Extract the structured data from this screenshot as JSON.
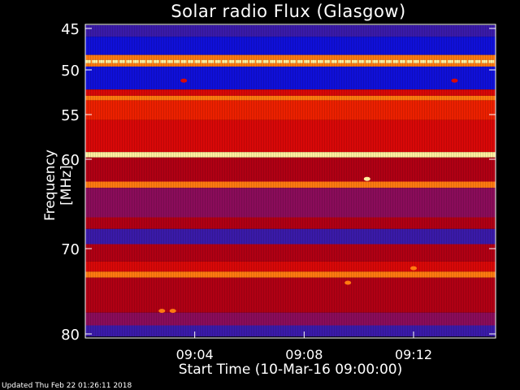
{
  "chart_data": {
    "type": "heatmap",
    "title": "Solar radio Flux (Glasgow)",
    "ylabel": "Frequency [MHz]",
    "xlabel": "Start Time (10-Mar-16 09:00:00)",
    "x_ticks": [
      "09:04",
      "09:08",
      "09:12"
    ],
    "x_tick_minutes": [
      4,
      8,
      12
    ],
    "xlim_minutes": [
      0,
      15
    ],
    "y_ticks": [
      45,
      50,
      55,
      60,
      70,
      80
    ],
    "ylim": [
      45,
      80
    ],
    "bands": [
      {
        "from": 44.6,
        "to": 46.0,
        "level": "low"
      },
      {
        "from": 46.0,
        "to": 48.2,
        "level": "very_low"
      },
      {
        "from": 48.2,
        "to": 48.8,
        "level": "high"
      },
      {
        "from": 48.8,
        "to": 49.2,
        "level": "max"
      },
      {
        "from": 49.2,
        "to": 49.6,
        "level": "high"
      },
      {
        "from": 49.6,
        "to": 52.2,
        "level": "very_low"
      },
      {
        "from": 52.2,
        "to": 52.9,
        "level": "mid"
      },
      {
        "from": 52.9,
        "to": 53.4,
        "level": "high"
      },
      {
        "from": 53.4,
        "to": 55.6,
        "level": "mid_high"
      },
      {
        "from": 55.6,
        "to": 59.2,
        "level": "mid"
      },
      {
        "from": 59.2,
        "to": 59.8,
        "level": "max"
      },
      {
        "from": 59.8,
        "to": 62.5,
        "level": "mid_low"
      },
      {
        "from": 62.5,
        "to": 63.2,
        "level": "high"
      },
      {
        "from": 63.2,
        "to": 66.5,
        "level": "low_mid"
      },
      {
        "from": 66.5,
        "to": 67.8,
        "level": "mid_low"
      },
      {
        "from": 67.8,
        "to": 69.5,
        "level": "low"
      },
      {
        "from": 69.5,
        "to": 71.5,
        "level": "mid_low"
      },
      {
        "from": 71.5,
        "to": 72.7,
        "level": "mid"
      },
      {
        "from": 72.7,
        "to": 73.4,
        "level": "high"
      },
      {
        "from": 73.4,
        "to": 77.5,
        "level": "mid_low"
      },
      {
        "from": 77.5,
        "to": 79.0,
        "level": "low_mid"
      },
      {
        "from": 79.0,
        "to": 80.3,
        "level": "low"
      }
    ],
    "colors": {
      "very_low": "#1010d8",
      "low": "#3a1aa8",
      "low_mid": "#8a0c5a",
      "mid_low": "#b00014",
      "mid": "#d80808",
      "mid_high": "#ec2000",
      "high": "#ff7a10",
      "max": "#fff0a0"
    },
    "hotspots": [
      {
        "minute": 10.3,
        "freq": 62.2,
        "level": "max"
      },
      {
        "minute": 3.6,
        "freq": 51.2,
        "level": "mid"
      },
      {
        "minute": 13.5,
        "freq": 51.2,
        "level": "mid"
      },
      {
        "minute": 9.6,
        "freq": 74.0,
        "level": "high"
      },
      {
        "minute": 12.0,
        "freq": 72.3,
        "level": "high"
      },
      {
        "minute": 2.8,
        "freq": 77.3,
        "level": "high"
      },
      {
        "minute": 3.2,
        "freq": 77.3,
        "level": "high"
      }
    ]
  },
  "footer": {
    "updated": "Updated Thu Feb 22 01:26:11 2018"
  }
}
